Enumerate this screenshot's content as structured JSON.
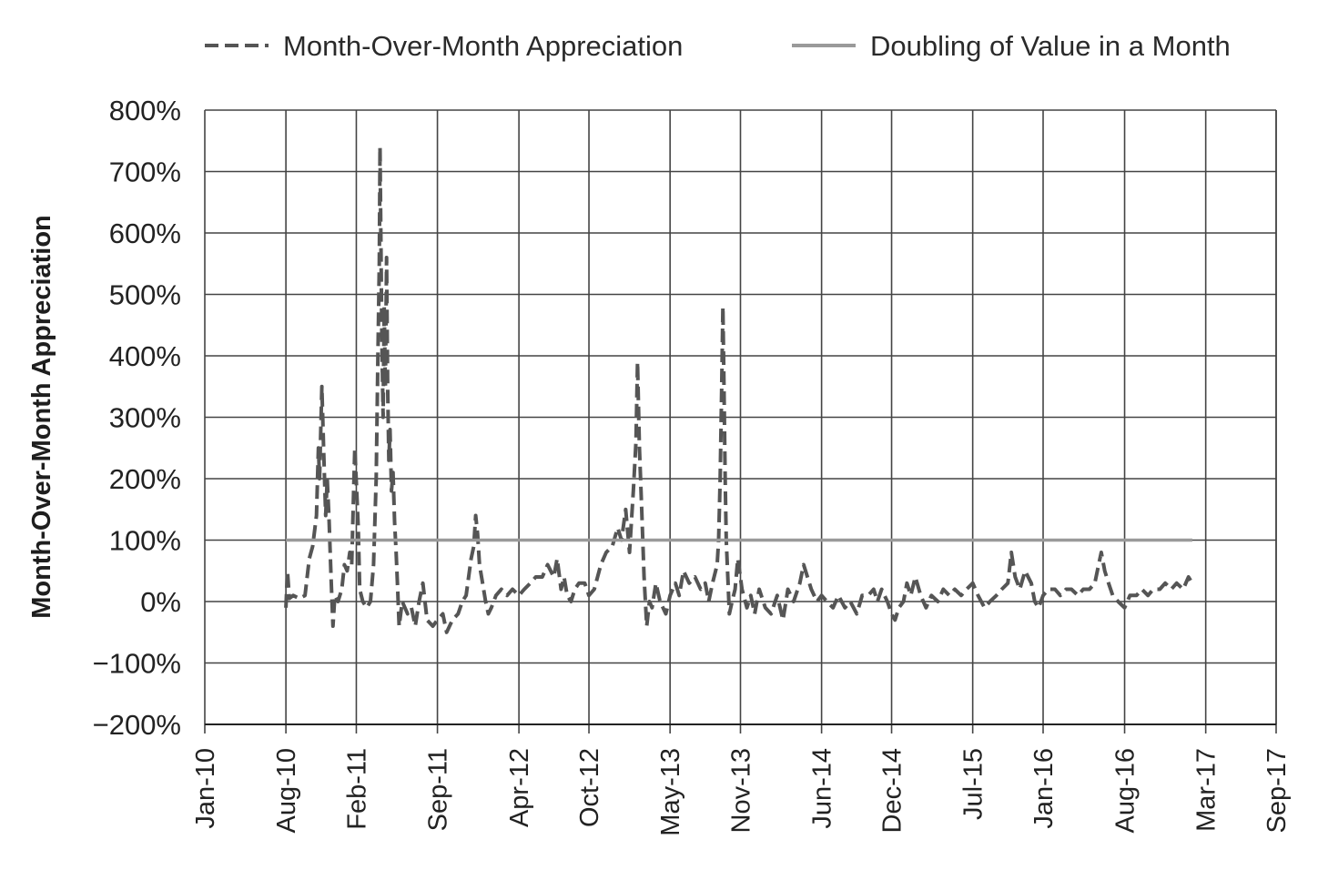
{
  "chart_data": {
    "type": "line",
    "title": "",
    "xlabel": "",
    "ylabel": "Month-Over-Month Appreciation",
    "ylim": [
      -200,
      800
    ],
    "xlim": [
      "2010-01-01",
      "2017-09-01"
    ],
    "y_ticks": [
      {
        "value": 800,
        "label": "800%"
      },
      {
        "value": 700,
        "label": "700%"
      },
      {
        "value": 600,
        "label": "600%"
      },
      {
        "value": 500,
        "label": "500%"
      },
      {
        "value": 400,
        "label": "400%"
      },
      {
        "value": 300,
        "label": "300%"
      },
      {
        "value": 200,
        "label": "200%"
      },
      {
        "value": 100,
        "label": "100%"
      },
      {
        "value": 0,
        "label": "0%"
      },
      {
        "value": -100,
        "label": "−100%"
      },
      {
        "value": -200,
        "label": "−200%"
      }
    ],
    "x_ticks": [
      {
        "date": "2010-01-01",
        "label": "Jan-10"
      },
      {
        "date": "2010-08-01",
        "label": "Aug-10"
      },
      {
        "date": "2011-02-01",
        "label": "Feb-11"
      },
      {
        "date": "2011-09-01",
        "label": "Sep-11"
      },
      {
        "date": "2012-04-01",
        "label": "Apr-12"
      },
      {
        "date": "2012-10-01",
        "label": "Oct-12"
      },
      {
        "date": "2013-05-01",
        "label": "May-13"
      },
      {
        "date": "2013-11-01",
        "label": "Nov-13"
      },
      {
        "date": "2014-06-01",
        "label": "Jun-14"
      },
      {
        "date": "2014-12-01",
        "label": "Dec-14"
      },
      {
        "date": "2015-07-01",
        "label": "Jul-15"
      },
      {
        "date": "2016-01-01",
        "label": "Jan-16"
      },
      {
        "date": "2016-08-01",
        "label": "Aug-16"
      },
      {
        "date": "2017-03-01",
        "label": "Mar-17"
      },
      {
        "date": "2017-09-01",
        "label": "Sep-17"
      }
    ],
    "grid": true,
    "legend_position": "top",
    "series": [
      {
        "name": "Month-Over-Month Appreciation",
        "style": "dashed",
        "color": "#555555",
        "points": [
          [
            "2010-08-01",
            -10
          ],
          [
            "2010-08-05",
            50
          ],
          [
            "2010-08-10",
            5
          ],
          [
            "2010-08-20",
            10
          ],
          [
            "2010-09-05",
            5
          ],
          [
            "2010-09-20",
            10
          ],
          [
            "2010-10-01",
            70
          ],
          [
            "2010-10-10",
            90
          ],
          [
            "2010-10-20",
            140
          ],
          [
            "2010-10-25",
            250
          ],
          [
            "2010-10-28",
            200
          ],
          [
            "2010-11-03",
            350
          ],
          [
            "2010-11-08",
            240
          ],
          [
            "2010-11-13",
            140
          ],
          [
            "2010-11-17",
            200
          ],
          [
            "2010-11-22",
            130
          ],
          [
            "2010-11-27",
            40
          ],
          [
            "2010-12-02",
            -40
          ],
          [
            "2010-12-07",
            10
          ],
          [
            "2010-12-15",
            0
          ],
          [
            "2010-12-25",
            20
          ],
          [
            "2011-01-01",
            60
          ],
          [
            "2011-01-08",
            50
          ],
          [
            "2011-01-15",
            80
          ],
          [
            "2011-01-20",
            60
          ],
          [
            "2011-01-25",
            180
          ],
          [
            "2011-01-28",
            250
          ],
          [
            "2011-02-02",
            180
          ],
          [
            "2011-02-06",
            120
          ],
          [
            "2011-02-10",
            20
          ],
          [
            "2011-02-18",
            0
          ],
          [
            "2011-02-28",
            -10
          ],
          [
            "2011-03-10",
            0
          ],
          [
            "2011-03-18",
            60
          ],
          [
            "2011-03-25",
            200
          ],
          [
            "2011-03-29",
            380
          ],
          [
            "2011-04-02",
            550
          ],
          [
            "2011-04-04",
            740
          ],
          [
            "2011-04-06",
            600
          ],
          [
            "2011-04-09",
            420
          ],
          [
            "2011-04-12",
            300
          ],
          [
            "2011-04-15",
            480
          ],
          [
            "2011-04-18",
            350
          ],
          [
            "2011-04-21",
            560
          ],
          [
            "2011-04-24",
            350
          ],
          [
            "2011-04-27",
            230
          ],
          [
            "2011-04-30",
            280
          ],
          [
            "2011-05-04",
            180
          ],
          [
            "2011-05-08",
            210
          ],
          [
            "2011-05-12",
            130
          ],
          [
            "2011-05-16",
            80
          ],
          [
            "2011-05-20",
            20
          ],
          [
            "2011-05-24",
            -40
          ],
          [
            "2011-06-01",
            0
          ],
          [
            "2011-06-15",
            -20
          ],
          [
            "2011-06-25",
            -10
          ],
          [
            "2011-07-05",
            -40
          ],
          [
            "2011-07-15",
            0
          ],
          [
            "2011-07-25",
            30
          ],
          [
            "2011-08-05",
            -30
          ],
          [
            "2011-08-20",
            -40
          ],
          [
            "2011-09-01",
            -30
          ],
          [
            "2011-09-15",
            -20
          ],
          [
            "2011-09-25",
            -50
          ],
          [
            "2011-10-10",
            -30
          ],
          [
            "2011-10-25",
            -20
          ],
          [
            "2011-11-05",
            0
          ],
          [
            "2011-11-15",
            10
          ],
          [
            "2011-11-28",
            70
          ],
          [
            "2011-12-05",
            90
          ],
          [
            "2011-12-10",
            140
          ],
          [
            "2011-12-15",
            110
          ],
          [
            "2011-12-20",
            60
          ],
          [
            "2011-12-28",
            30
          ],
          [
            "2012-01-05",
            0
          ],
          [
            "2012-01-12",
            -20
          ],
          [
            "2012-01-20",
            -10
          ],
          [
            "2012-02-01",
            10
          ],
          [
            "2012-02-15",
            20
          ],
          [
            "2012-03-01",
            10
          ],
          [
            "2012-03-15",
            20
          ],
          [
            "2012-04-01",
            10
          ],
          [
            "2012-04-15",
            20
          ],
          [
            "2012-05-01",
            30
          ],
          [
            "2012-05-15",
            40
          ],
          [
            "2012-06-01",
            40
          ],
          [
            "2012-06-15",
            60
          ],
          [
            "2012-07-01",
            40
          ],
          [
            "2012-07-10",
            70
          ],
          [
            "2012-07-20",
            20
          ],
          [
            "2012-07-28",
            40
          ],
          [
            "2012-08-05",
            10
          ],
          [
            "2012-08-15",
            0
          ],
          [
            "2012-08-25",
            20
          ],
          [
            "2012-09-05",
            30
          ],
          [
            "2012-09-20",
            30
          ],
          [
            "2012-10-01",
            10
          ],
          [
            "2012-10-15",
            20
          ],
          [
            "2012-11-01",
            60
          ],
          [
            "2012-11-15",
            80
          ],
          [
            "2012-12-01",
            90
          ],
          [
            "2012-12-15",
            120
          ],
          [
            "2012-12-25",
            100
          ],
          [
            "2013-01-05",
            150
          ],
          [
            "2013-01-15",
            80
          ],
          [
            "2013-01-25",
            180
          ],
          [
            "2013-02-01",
            260
          ],
          [
            "2013-02-05",
            390
          ],
          [
            "2013-02-10",
            250
          ],
          [
            "2013-02-16",
            150
          ],
          [
            "2013-02-22",
            40
          ],
          [
            "2013-03-01",
            -40
          ],
          [
            "2013-03-08",
            0
          ],
          [
            "2013-03-15",
            -10
          ],
          [
            "2013-03-25",
            30
          ],
          [
            "2013-04-05",
            0
          ],
          [
            "2013-04-20",
            -20
          ],
          [
            "2013-05-01",
            10
          ],
          [
            "2013-05-15",
            30
          ],
          [
            "2013-05-25",
            10
          ],
          [
            "2013-06-05",
            50
          ],
          [
            "2013-06-20",
            30
          ],
          [
            "2013-07-05",
            40
          ],
          [
            "2013-07-20",
            20
          ],
          [
            "2013-08-01",
            30
          ],
          [
            "2013-08-10",
            0
          ],
          [
            "2013-08-20",
            30
          ],
          [
            "2013-09-01",
            60
          ],
          [
            "2013-09-05",
            100
          ],
          [
            "2013-09-09",
            200
          ],
          [
            "2013-09-13",
            350
          ],
          [
            "2013-09-16",
            480
          ],
          [
            "2013-09-19",
            350
          ],
          [
            "2013-09-22",
            200
          ],
          [
            "2013-09-25",
            100
          ],
          [
            "2013-09-29",
            40
          ],
          [
            "2013-10-03",
            -20
          ],
          [
            "2013-10-10",
            0
          ],
          [
            "2013-10-18",
            20
          ],
          [
            "2013-10-25",
            70
          ],
          [
            "2013-11-05",
            20
          ],
          [
            "2013-11-18",
            -10
          ],
          [
            "2013-11-28",
            10
          ],
          [
            "2013-12-08",
            -20
          ],
          [
            "2013-12-20",
            20
          ],
          [
            "2014-01-05",
            -10
          ],
          [
            "2014-01-20",
            -20
          ],
          [
            "2014-02-05",
            10
          ],
          [
            "2014-02-20",
            -30
          ],
          [
            "2014-03-05",
            20
          ],
          [
            "2014-03-20",
            0
          ],
          [
            "2014-04-05",
            30
          ],
          [
            "2014-04-15",
            60
          ],
          [
            "2014-04-25",
            40
          ],
          [
            "2014-05-05",
            20
          ],
          [
            "2014-05-20",
            0
          ],
          [
            "2014-06-01",
            10
          ],
          [
            "2014-06-15",
            0
          ],
          [
            "2014-07-01",
            -10
          ],
          [
            "2014-07-15",
            10
          ],
          [
            "2014-08-01",
            -10
          ],
          [
            "2014-08-15",
            0
          ],
          [
            "2014-09-01",
            -20
          ],
          [
            "2014-09-15",
            10
          ],
          [
            "2014-10-01",
            10
          ],
          [
            "2014-10-15",
            20
          ],
          [
            "2014-10-25",
            0
          ],
          [
            "2014-11-05",
            20
          ],
          [
            "2014-11-20",
            0
          ],
          [
            "2014-12-01",
            -20
          ],
          [
            "2014-12-10",
            -30
          ],
          [
            "2014-12-20",
            -10
          ],
          [
            "2015-01-01",
            0
          ],
          [
            "2015-01-10",
            30
          ],
          [
            "2015-01-20",
            10
          ],
          [
            "2015-02-01",
            40
          ],
          [
            "2015-02-15",
            10
          ],
          [
            "2015-03-01",
            -10
          ],
          [
            "2015-03-15",
            10
          ],
          [
            "2015-04-01",
            0
          ],
          [
            "2015-04-15",
            20
          ],
          [
            "2015-05-01",
            10
          ],
          [
            "2015-05-15",
            20
          ],
          [
            "2015-06-01",
            10
          ],
          [
            "2015-06-15",
            20
          ],
          [
            "2015-07-01",
            30
          ],
          [
            "2015-07-15",
            10
          ],
          [
            "2015-08-01",
            -10
          ],
          [
            "2015-08-15",
            0
          ],
          [
            "2015-09-01",
            10
          ],
          [
            "2015-09-15",
            20
          ],
          [
            "2015-10-01",
            30
          ],
          [
            "2015-10-10",
            80
          ],
          [
            "2015-10-20",
            40
          ],
          [
            "2015-11-01",
            20
          ],
          [
            "2015-11-15",
            50
          ],
          [
            "2015-12-01",
            30
          ],
          [
            "2015-12-10",
            0
          ],
          [
            "2015-12-20",
            -10
          ],
          [
            "2016-01-01",
            10
          ],
          [
            "2016-01-15",
            20
          ],
          [
            "2016-02-01",
            20
          ],
          [
            "2016-02-15",
            10
          ],
          [
            "2016-03-01",
            20
          ],
          [
            "2016-03-15",
            20
          ],
          [
            "2016-04-01",
            10
          ],
          [
            "2016-04-15",
            20
          ],
          [
            "2016-05-01",
            20
          ],
          [
            "2016-05-15",
            30
          ],
          [
            "2016-05-25",
            60
          ],
          [
            "2016-06-01",
            80
          ],
          [
            "2016-06-10",
            50
          ],
          [
            "2016-06-20",
            30
          ],
          [
            "2016-07-01",
            10
          ],
          [
            "2016-07-15",
            0
          ],
          [
            "2016-08-01",
            -10
          ],
          [
            "2016-08-15",
            10
          ],
          [
            "2016-09-01",
            10
          ],
          [
            "2016-09-15",
            20
          ],
          [
            "2016-10-01",
            10
          ],
          [
            "2016-10-15",
            20
          ],
          [
            "2016-11-01",
            20
          ],
          [
            "2016-11-15",
            30
          ],
          [
            "2016-12-01",
            20
          ],
          [
            "2016-12-15",
            30
          ],
          [
            "2017-01-01",
            20
          ],
          [
            "2017-01-15",
            40
          ],
          [
            "2017-01-25",
            30
          ]
        ]
      },
      {
        "name": "Doubling of Value in a Month",
        "style": "solid",
        "color": "#9a9a9a",
        "points": [
          [
            "2010-08-01",
            100
          ],
          [
            "2017-01-25",
            100
          ]
        ]
      }
    ]
  }
}
